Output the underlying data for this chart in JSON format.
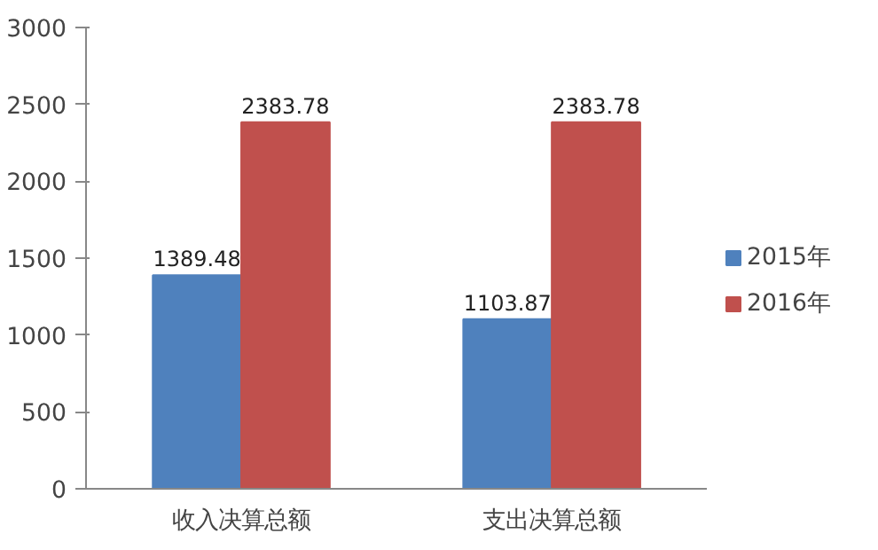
{
  "chart_data": {
    "type": "bar",
    "categories": [
      "收入决算总额",
      "支出决算总额"
    ],
    "series": [
      {
        "name": "2015年",
        "color": "#4f81bd",
        "values": [
          1389.48,
          1103.87
        ]
      },
      {
        "name": "2016年",
        "color": "#c0504d",
        "values": [
          2383.78,
          2383.78
        ]
      }
    ],
    "ylim": [
      0,
      3000
    ],
    "yticks": [
      0,
      500,
      1000,
      1500,
      2000,
      2500,
      3000
    ],
    "grid": false,
    "legend": "right",
    "data_labels": true
  }
}
